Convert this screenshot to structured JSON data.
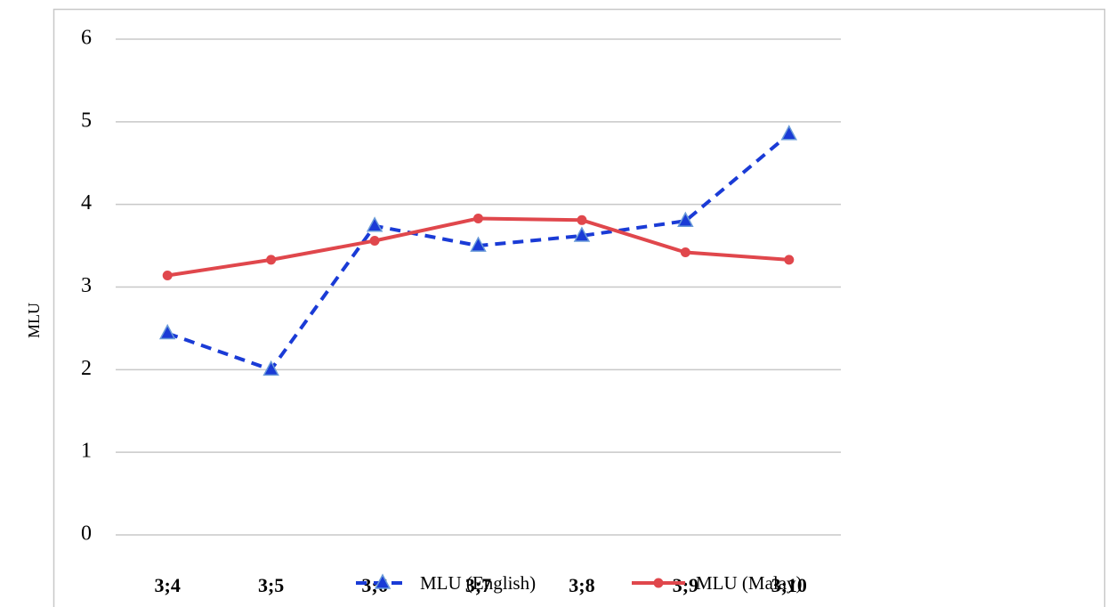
{
  "chart_data": {
    "type": "line",
    "y_label": "MLU",
    "categories": [
      "3;4",
      "3;5",
      "3;6",
      "3;7",
      "3;8",
      "3;9",
      "3;10"
    ],
    "series": [
      {
        "name": "MLU (English)",
        "color": "#1a3bd6",
        "dash": true,
        "marker": "triangle",
        "values": [
          2.44,
          2.0,
          3.74,
          3.5,
          3.62,
          3.8,
          4.85
        ]
      },
      {
        "name": "MLU (Malay)",
        "color": "#e0474c",
        "dash": false,
        "marker": "circle",
        "values": [
          3.14,
          3.33,
          3.56,
          3.83,
          3.81,
          3.42,
          3.33
        ]
      }
    ],
    "ylim": [
      0,
      6
    ],
    "yticks": [
      0,
      1,
      2,
      3,
      4,
      5,
      6
    ],
    "grid": true,
    "legend": "bottom"
  }
}
